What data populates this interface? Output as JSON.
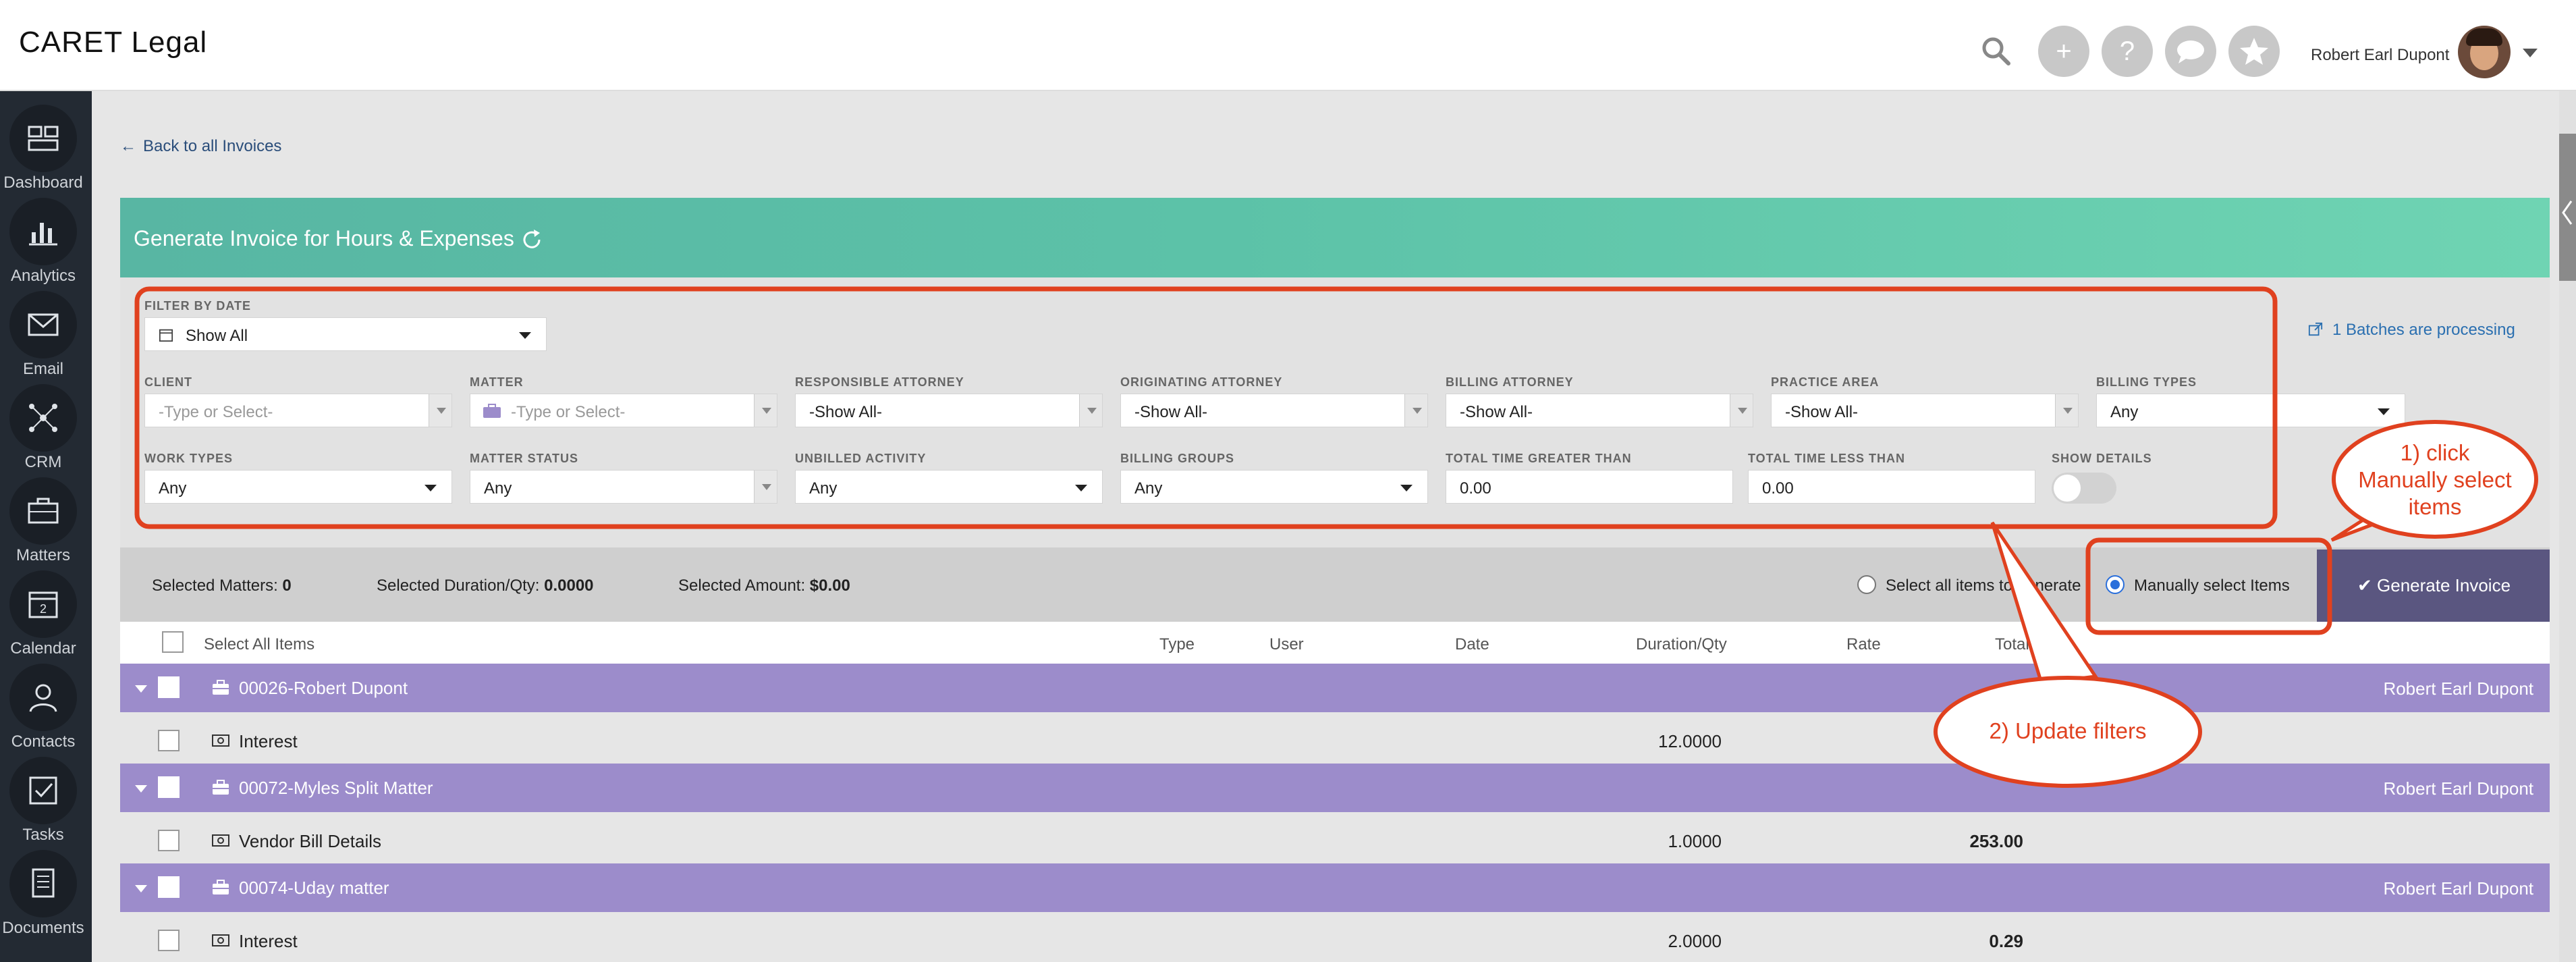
{
  "header": {
    "logo": "CARET Legal",
    "user_name": "Robert Earl Dupont"
  },
  "sidebar": {
    "items": [
      {
        "label": "Dashboard",
        "icon": "dashboard-icon"
      },
      {
        "label": "Analytics",
        "icon": "analytics-icon"
      },
      {
        "label": "Email",
        "icon": "email-icon"
      },
      {
        "label": "CRM",
        "icon": "crm-icon"
      },
      {
        "label": "Matters",
        "icon": "briefcase-icon"
      },
      {
        "label": "Calendar",
        "icon": "calendar-icon"
      },
      {
        "label": "Contacts",
        "icon": "contacts-icon"
      },
      {
        "label": "Tasks",
        "icon": "tasks-icon"
      },
      {
        "label": "Documents",
        "icon": "documents-icon"
      }
    ],
    "calendar_day": "2"
  },
  "back_link": "Back to all Invoices",
  "title": "Generate Invoice for Hours & Expenses",
  "filters": {
    "filter_by_date": {
      "label": "FILTER BY DATE",
      "value": "Show All"
    },
    "client": {
      "label": "CLIENT",
      "placeholder": "-Type or Select-"
    },
    "matter": {
      "label": "MATTER",
      "placeholder": "-Type or Select-"
    },
    "responsible_attorney": {
      "label": "RESPONSIBLE ATTORNEY",
      "value": "-Show All-"
    },
    "originating_attorney": {
      "label": "ORIGINATING ATTORNEY",
      "value": "-Show All-"
    },
    "billing_attorney": {
      "label": "BILLING ATTORNEY",
      "value": "-Show All-"
    },
    "practice_area": {
      "label": "PRACTICE AREA",
      "value": "-Show All-"
    },
    "billing_types": {
      "label": "BILLING TYPES",
      "value": "Any"
    },
    "work_types": {
      "label": "WORK TYPES",
      "value": "Any"
    },
    "matter_status": {
      "label": "MATTER STATUS",
      "value": "Any"
    },
    "unbilled_activity": {
      "label": "UNBILLED ACTIVITY",
      "value": "Any"
    },
    "billing_groups": {
      "label": "BILLING GROUPS",
      "value": "Any"
    },
    "total_time_greater": {
      "label": "TOTAL TIME GREATER THAN",
      "value": "0.00"
    },
    "total_time_less": {
      "label": "TOTAL TIME LESS THAN",
      "value": "0.00"
    },
    "show_details": {
      "label": "SHOW DETAILS",
      "on": false
    }
  },
  "batches": "1 Batches are processing",
  "selection": {
    "matters_label": "Selected Matters:",
    "matters_value": "0",
    "duration_label": "Selected Duration/Qty:",
    "duration_value": "0.0000",
    "amount_label": "Selected Amount:",
    "amount_value": "$0.00",
    "select_all_generate": "Select all items to generate",
    "manually_select": "Manually select Items",
    "generate_button": "Generate Invoice"
  },
  "table": {
    "select_all": "Select All Items",
    "columns": [
      "Type",
      "User",
      "Date",
      "Duration/Qty",
      "Rate",
      "Total"
    ]
  },
  "groups": [
    {
      "name": "00026-Robert Dupont",
      "attorney": "Robert Earl Dupont",
      "items": [
        {
          "name": "Interest",
          "duration": "12.0000",
          "total": ""
        }
      ]
    },
    {
      "name": "00072-Myles Split Matter",
      "attorney": "Robert Earl Dupont",
      "items": [
        {
          "name": "Vendor Bill Details",
          "duration": "1.0000",
          "total": "253.00"
        }
      ]
    },
    {
      "name": "00074-Uday matter",
      "attorney": "Robert Earl Dupont",
      "items": [
        {
          "name": "Interest",
          "duration": "2.0000",
          "total": "0.29"
        }
      ]
    }
  ],
  "annotations": {
    "callout1": [
      "1) click",
      "Manually select",
      "items"
    ],
    "callout2": "2) Update filters"
  },
  "colors": {
    "sidebar": "#232a33",
    "header_gradient_start": "#58b6a3",
    "group_row": "#9c8ccb",
    "generate_button": "#5a5680",
    "annotation": "#e0411f"
  }
}
